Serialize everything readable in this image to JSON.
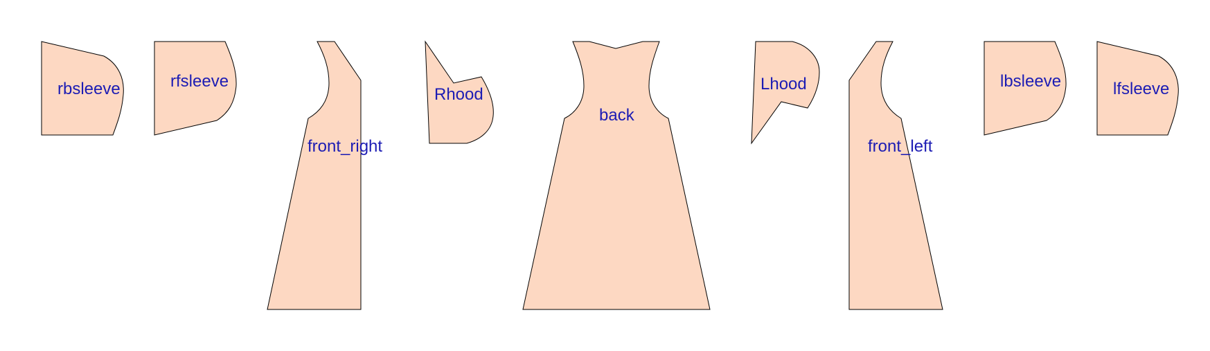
{
  "colors": {
    "background": "#ffffff",
    "piece_fill": "#fdd8c2",
    "piece_stroke": "#000000",
    "label": "#1c1cb4"
  },
  "pieces": {
    "rbsleeve": "rbsleeve",
    "rfsleeve": "rfsleeve",
    "front_right": "front_right",
    "rhood": "Rhood",
    "back": "back",
    "lhood": "Lhood",
    "front_left": "front_left",
    "lbsleeve": "lbsleeve",
    "lfsleeve": "lfsleeve"
  }
}
